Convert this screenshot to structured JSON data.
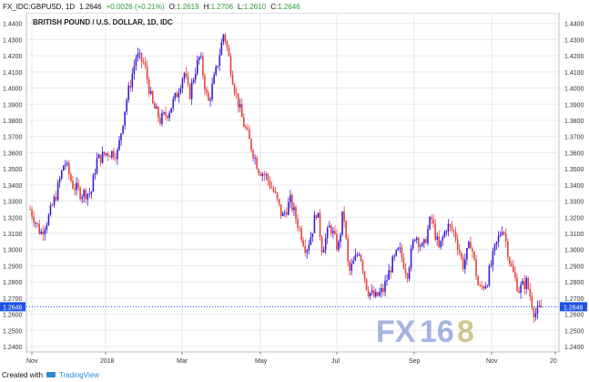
{
  "header": {
    "symbol": "FX_IDC:GBPUSD, 1D",
    "last": "1.2646",
    "change": "+0.0026 (+0.21%)",
    "o_label": "O:",
    "o_value": "1.2619",
    "h_label": "H:",
    "h_value": "1.2706",
    "l_label": "L:",
    "l_value": "1.2610",
    "c_label": "C:",
    "c_value": "1.2646"
  },
  "colors": {
    "up": "#3a1bd6",
    "down": "#e4433f",
    "price_tag": "#1e53e5",
    "grid": "#e6e9ef",
    "axis_text": "#333333"
  },
  "chart_data": {
    "type": "candlestick",
    "title": "BRITISH POUND / U.S. DOLLAR, 1D, IDC",
    "ylim": [
      1.2366,
      1.4466
    ],
    "y_ticks": [
      "1.4400",
      "1.4300",
      "1.4200",
      "1.4100",
      "1.4000",
      "1.3900",
      "1.3800",
      "1.3700",
      "1.3600",
      "1.3500",
      "1.3400",
      "1.3300",
      "1.3200",
      "1.3100",
      "1.3000",
      "1.2900",
      "1.2800",
      "1.2700",
      "1.2600",
      "1.2500",
      "1.2400"
    ],
    "x_ticks": [
      "Nov",
      "2018",
      "Mar",
      "May",
      "Jul",
      "Sep",
      "Nov",
      "20"
    ],
    "last_price": "1.2646",
    "grid": true,
    "path_x_days": [
      0,
      8,
      14,
      20,
      26,
      32,
      38,
      46,
      50,
      58,
      66,
      72,
      80,
      86,
      92,
      98,
      104,
      110,
      116,
      120,
      124,
      128,
      134,
      140,
      146,
      154,
      160,
      166,
      172,
      178,
      184,
      190,
      196,
      202,
      208,
      212,
      216,
      220,
      226,
      232,
      236,
      240,
      248,
      254,
      260,
      266,
      272,
      278,
      284,
      290,
      296,
      302,
      308,
      314,
      320,
      326,
      332,
      338,
      344,
      350,
      356,
      362,
      368,
      374,
      380,
      386
    ],
    "path_close": [
      1.325,
      1.31,
      1.32,
      1.335,
      1.355,
      1.34,
      1.335,
      1.335,
      1.355,
      1.36,
      1.36,
      1.39,
      1.42,
      1.415,
      1.39,
      1.38,
      1.385,
      1.395,
      1.41,
      1.395,
      1.41,
      1.42,
      1.39,
      1.41,
      1.435,
      1.4,
      1.38,
      1.365,
      1.35,
      1.345,
      1.335,
      1.32,
      1.33,
      1.315,
      1.3,
      1.31,
      1.325,
      1.3,
      1.315,
      1.3,
      1.325,
      1.285,
      1.3,
      1.275,
      1.27,
      1.275,
      1.29,
      1.3,
      1.285,
      1.31,
      1.3,
      1.32,
      1.3,
      1.315,
      1.31,
      1.29,
      1.305,
      1.275,
      1.28,
      1.3,
      1.315,
      1.29,
      1.275,
      1.28,
      1.26,
      1.2646
    ]
  },
  "watermark": {
    "text_left": "FX",
    "text_mid": "16",
    "text_right": "8"
  },
  "footer": {
    "created": "Created with",
    "brand": "TradingView"
  }
}
